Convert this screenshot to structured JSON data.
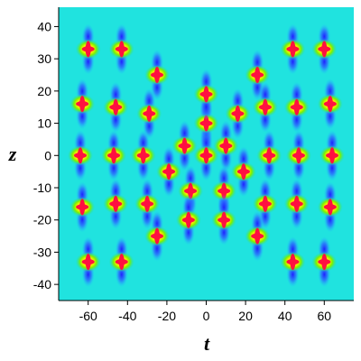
{
  "chart_data": {
    "type": "density",
    "xlabel": "t",
    "ylabel": "z",
    "xlim": [
      -75,
      75
    ],
    "ylim": [
      -45,
      46
    ],
    "xticks": [
      -60,
      -40,
      -20,
      0,
      20,
      40,
      60
    ],
    "yticks": [
      -40,
      -30,
      -20,
      -10,
      0,
      10,
      20,
      30,
      40
    ],
    "background": "#20e3df",
    "peaks": {
      "x": [
        -60,
        -43,
        44,
        60,
        -25,
        26,
        -63,
        -46,
        -29,
        16,
        30,
        46,
        63,
        0,
        0,
        -11,
        10,
        -64,
        -47,
        -32,
        0,
        32,
        47,
        64,
        -19,
        19,
        -8,
        9,
        -63,
        -46,
        -30,
        30,
        46,
        63,
        -9,
        9,
        -25,
        26,
        -60,
        -43,
        44,
        60
      ],
      "y": [
        33,
        33,
        33,
        33,
        25,
        25,
        16,
        15,
        13,
        13,
        15,
        15,
        16,
        10,
        19,
        3,
        3,
        0,
        0,
        0,
        0,
        0,
        0,
        0,
        -5,
        -5,
        -11,
        -11,
        -16,
        -15,
        -15,
        -15,
        -15,
        -16,
        -20,
        -20,
        -25,
        -25,
        -33,
        -33,
        -33,
        -33
      ]
    }
  }
}
